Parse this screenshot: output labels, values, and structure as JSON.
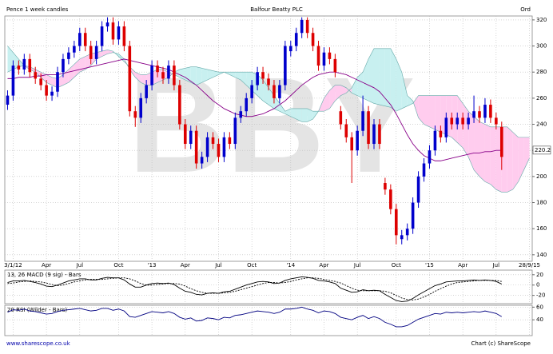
{
  "chart_data": [
    {
      "type": "candlestick",
      "title": "Balfour Beatty PLC",
      "subtitle": "Ord",
      "y_label": "Pence 1 week candles",
      "watermark": "BBY",
      "categories": [
        null,
        "3/1/12",
        null,
        null,
        null,
        null,
        null,
        "Apr",
        null,
        null,
        null,
        null,
        null,
        "Jul",
        null,
        null,
        null,
        null,
        null,
        null,
        "Oct",
        null,
        null,
        null,
        null,
        null,
        "'13",
        null,
        null,
        null,
        null,
        null,
        "Apr",
        null,
        null,
        null,
        null,
        null,
        "Jul",
        null,
        null,
        null,
        null,
        null,
        "Oct",
        null,
        null,
        null,
        null,
        null,
        null,
        "'14",
        null,
        null,
        null,
        null,
        null,
        "Apr",
        null,
        null,
        null,
        null,
        null,
        "Jul",
        null,
        null,
        null,
        null,
        null,
        null,
        "Oct",
        null,
        null,
        null,
        null,
        null,
        "'15",
        null,
        null,
        null,
        null,
        null,
        "Apr",
        null,
        null,
        null,
        null,
        null,
        "Jul",
        null,
        null,
        null,
        null,
        null,
        "28/9/15"
      ],
      "open": [
        255,
        262,
        285,
        282,
        290,
        280,
        275,
        270,
        262,
        265,
        280,
        290,
        295,
        300,
        310,
        300,
        290,
        300,
        315,
        318,
        305,
        315,
        300,
        250,
        245,
        260,
        270,
        285,
        280,
        275,
        285,
        270,
        240,
        225,
        235,
        210,
        215,
        230,
        225,
        215,
        230,
        225,
        245,
        250,
        260,
        270,
        280,
        275,
        270,
        260,
        270,
        296,
        300,
        310,
        320,
        310,
        300,
        285,
        295,
        290,
        250,
        240,
        230,
        220,
        235,
        250,
        225,
        240,
        195,
        190,
        175,
        152,
        155,
        160,
        180,
        200,
        210,
        220,
        235,
        230,
        245,
        240,
        245,
        240,
        245,
        250,
        245,
        255,
        245,
        238,
        null,
        null,
        null,
        null,
        null
      ],
      "high": [
        266,
        289,
        289,
        294,
        294,
        284,
        279,
        274,
        269,
        284,
        294,
        299,
        304,
        314,
        314,
        304,
        304,
        319,
        322,
        322,
        319,
        319,
        304,
        254,
        264,
        274,
        289,
        289,
        284,
        289,
        289,
        274,
        244,
        239,
        239,
        219,
        234,
        234,
        229,
        234,
        234,
        249,
        254,
        264,
        274,
        284,
        284,
        279,
        274,
        274,
        304,
        304,
        314,
        322,
        322,
        314,
        304,
        299,
        299,
        294,
        254,
        244,
        234,
        239,
        262,
        254,
        244,
        244,
        199,
        194,
        179,
        159,
        164,
        184,
        204,
        214,
        224,
        239,
        239,
        249,
        249,
        249,
        249,
        249,
        262,
        254,
        260,
        259,
        249,
        242,
        null,
        null,
        null,
        null,
        null
      ],
      "low": [
        251,
        258,
        278,
        278,
        276,
        271,
        266,
        258,
        258,
        261,
        276,
        286,
        291,
        296,
        296,
        286,
        286,
        296,
        311,
        301,
        301,
        296,
        246,
        238,
        241,
        256,
        266,
        276,
        271,
        271,
        266,
        236,
        221,
        221,
        206,
        206,
        211,
        221,
        211,
        211,
        221,
        221,
        241,
        246,
        256,
        266,
        271,
        266,
        256,
        256,
        266,
        292,
        296,
        306,
        306,
        296,
        281,
        281,
        286,
        276,
        236,
        226,
        195,
        216,
        231,
        221,
        221,
        221,
        186,
        171,
        148,
        148,
        151,
        156,
        176,
        196,
        206,
        216,
        226,
        226,
        236,
        236,
        236,
        236,
        241,
        241,
        241,
        241,
        236,
        205,
        null,
        null,
        null,
        null,
        null
      ],
      "close": [
        262,
        285,
        282,
        290,
        280,
        275,
        270,
        262,
        265,
        280,
        290,
        295,
        300,
        310,
        300,
        290,
        300,
        315,
        318,
        305,
        315,
        300,
        250,
        245,
        260,
        270,
        285,
        280,
        275,
        285,
        270,
        240,
        225,
        235,
        210,
        215,
        230,
        225,
        215,
        230,
        225,
        245,
        250,
        260,
        270,
        280,
        275,
        270,
        260,
        270,
        300,
        300,
        310,
        320,
        310,
        300,
        285,
        295,
        290,
        280,
        240,
        230,
        220,
        235,
        250,
        225,
        240,
        225,
        190,
        175,
        155,
        155,
        160,
        180,
        200,
        210,
        220,
        235,
        230,
        245,
        240,
        245,
        240,
        245,
        250,
        245,
        255,
        245,
        240,
        215,
        null,
        null,
        null,
        null,
        null
      ],
      "up_color": "#0000cc",
      "down_color": "#dd0000",
      "cloud": {
        "color_a": "#ffccee",
        "color_b": "#c8f0f0",
        "line_color": "#66aaaa",
        "span_a": [
          280,
          282,
          284,
          285,
          284,
          282,
          280,
          278,
          276,
          275,
          278,
          282,
          286,
          290,
          292,
          294,
          295,
          296,
          297,
          296,
          292,
          288,
          284,
          280,
          278,
          278,
          280,
          282,
          282,
          280,
          278,
          276,
          274,
          272,
          270,
          272,
          274,
          276,
          278,
          280,
          278,
          276,
          274,
          270,
          266,
          262,
          258,
          255,
          252,
          250,
          248,
          246,
          244,
          242,
          242,
          244,
          250,
          260,
          266,
          270,
          270,
          268,
          264,
          262,
          260,
          258,
          256,
          255,
          254,
          253,
          250,
          252,
          254,
          256,
          262,
          262,
          262,
          262,
          262,
          262,
          262,
          262,
          256,
          250,
          246,
          242,
          240,
          238,
          238,
          238,
          238,
          234,
          230,
          230,
          230
        ],
        "span_b": [
          300,
          295,
          290,
          285,
          282,
          280,
          276,
          272,
          270,
          268,
          270,
          272,
          276,
          280,
          282,
          285,
          290,
          292,
          294,
          295,
          294,
          290,
          282,
          276,
          272,
          270,
          270,
          272,
          274,
          276,
          280,
          282,
          283,
          284,
          284,
          283,
          282,
          281,
          280,
          280,
          280,
          280,
          280,
          280,
          280,
          278,
          274,
          268,
          262,
          256,
          250,
          252,
          252,
          252,
          252,
          250,
          250,
          250,
          252,
          258,
          262,
          264,
          268,
          276,
          280,
          290,
          298,
          298,
          298,
          298,
          290,
          280,
          262,
          258,
          245,
          240,
          238,
          236,
          234,
          232,
          230,
          226,
          222,
          215,
          205,
          200,
          196,
          194,
          190,
          188,
          188,
          190,
          196,
          205,
          214
        ]
      },
      "ma": {
        "color": "#880088",
        "values": [
          275,
          275,
          276,
          276,
          276,
          277,
          277,
          278,
          278,
          278,
          279,
          280,
          281,
          282,
          283,
          284,
          285,
          286,
          287,
          288,
          289,
          290,
          289,
          288,
          287,
          286,
          285,
          284,
          283,
          282,
          280,
          278,
          276,
          273,
          270,
          266,
          262,
          258,
          255,
          252,
          250,
          248,
          247,
          246,
          246,
          247,
          248,
          250,
          252,
          255,
          258,
          262,
          266,
          270,
          273,
          276,
          278,
          279,
          280,
          280,
          279,
          278,
          276,
          274,
          272,
          270,
          268,
          265,
          260,
          255,
          248,
          240,
          232,
          225,
          220,
          216,
          214,
          212,
          212,
          213,
          214,
          215,
          216,
          217,
          218,
          218,
          219,
          219,
          220,
          220,
          null,
          null,
          null,
          null,
          null
        ]
      },
      "last_price": 220.2,
      "ylim": [
        135,
        323
      ],
      "yticks": [
        140,
        160,
        180,
        200,
        220,
        240,
        260,
        280,
        300,
        320
      ],
      "grid": true
    },
    {
      "type": "line",
      "title": "13, 26 MACD (9 sig) - Bars",
      "series": [
        {
          "color": "#000000",
          "values": [
            5,
            8,
            8,
            9,
            7,
            5,
            2,
            -2,
            -3,
            0,
            4,
            8,
            10,
            12,
            12,
            10,
            10,
            13,
            15,
            14,
            14,
            10,
            2,
            -4,
            -4,
            0,
            3,
            4,
            3,
            4,
            1,
            -6,
            -12,
            -14,
            -18,
            -19,
            -16,
            -15,
            -16,
            -13,
            -12,
            -8,
            -4,
            0,
            3,
            6,
            7,
            6,
            3,
            4,
            9,
            12,
            14,
            16,
            15,
            13,
            9,
            8,
            6,
            3,
            -6,
            -10,
            -14,
            -13,
            -9,
            -11,
            -10,
            -11,
            -18,
            -24,
            -30,
            -32,
            -31,
            -26,
            -19,
            -13,
            -7,
            -1,
            2,
            6,
            7,
            8,
            8,
            9,
            10,
            9,
            10,
            9,
            7,
            2,
            null,
            null,
            null,
            null,
            null
          ]
        },
        {
          "color": "#000000",
          "dashed": true,
          "values": [
            3,
            4,
            6,
            7,
            8,
            7,
            6,
            4,
            1,
            -1,
            0,
            3,
            6,
            8,
            10,
            11,
            11,
            11,
            12,
            13,
            14,
            14,
            12,
            8,
            3,
            0,
            0,
            1,
            2,
            3,
            3,
            2,
            -2,
            -7,
            -11,
            -14,
            -16,
            -16,
            -16,
            -15,
            -14,
            -12,
            -9,
            -6,
            -3,
            0,
            3,
            5,
            5,
            4,
            5,
            7,
            10,
            12,
            14,
            14,
            13,
            11,
            9,
            7,
            4,
            -1,
            -6,
            -10,
            -11,
            -11,
            -11,
            -11,
            -12,
            -15,
            -20,
            -25,
            -28,
            -29,
            -27,
            -23,
            -18,
            -12,
            -7,
            -2,
            2,
            5,
            6,
            7,
            8,
            9,
            9,
            9,
            9,
            7,
            null,
            null,
            null,
            null,
            null
          ]
        }
      ],
      "ylim": [
        -36,
        29
      ],
      "yticks": [
        20,
        0,
        -20
      ],
      "grid": true
    },
    {
      "type": "line",
      "title": "20 RSI (Wilder - Bars)",
      "series": [
        {
          "color": "#000080",
          "values": [
            52,
            56,
            55,
            57,
            54,
            53,
            51,
            49,
            50,
            53,
            55,
            56,
            57,
            58,
            56,
            54,
            55,
            58,
            58,
            55,
            57,
            54,
            45,
            44,
            47,
            50,
            53,
            52,
            51,
            53,
            50,
            44,
            41,
            43,
            38,
            39,
            43,
            42,
            40,
            44,
            43,
            47,
            48,
            50,
            52,
            54,
            53,
            52,
            50,
            52,
            57,
            57,
            58,
            60,
            57,
            55,
            51,
            54,
            53,
            50,
            44,
            42,
            40,
            44,
            47,
            42,
            45,
            42,
            36,
            33,
            29,
            29,
            31,
            36,
            41,
            44,
            47,
            50,
            49,
            52,
            51,
            52,
            51,
            52,
            53,
            52,
            54,
            52,
            50,
            45,
            null,
            null,
            null,
            null,
            null
          ]
        }
      ],
      "ylim": [
        15,
        63
      ],
      "yticks": [
        60,
        40
      ],
      "grid": true
    }
  ],
  "footer_left": "www.sharescope.co.uk",
  "footer_right": "Chart (c) ShareScope"
}
